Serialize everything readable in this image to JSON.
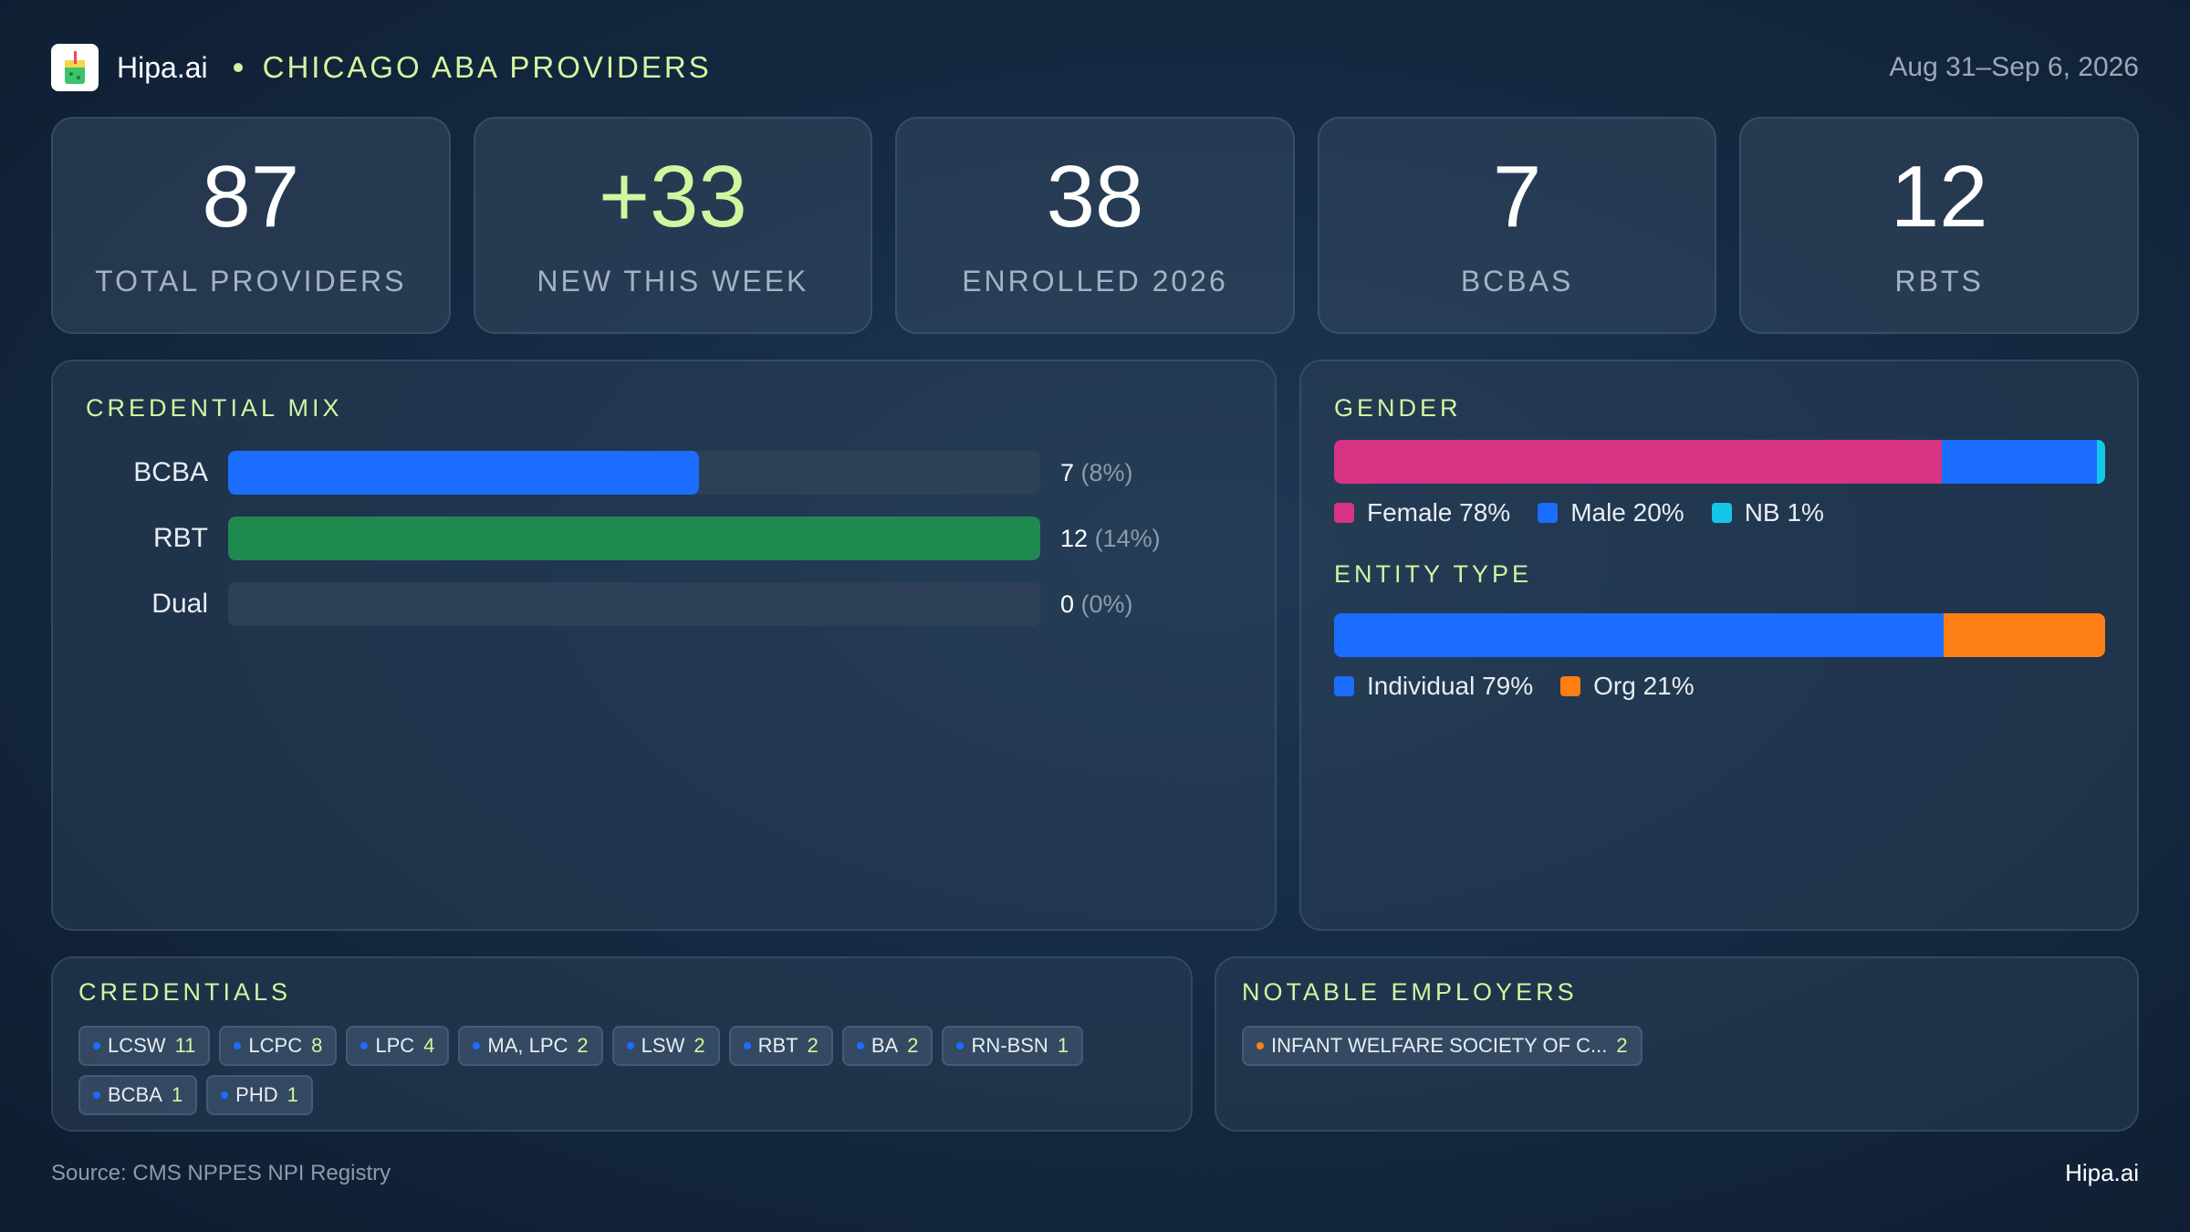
{
  "header": {
    "brand": "Hipa.ai",
    "title": "CHICAGO ABA PROVIDERS",
    "date_range": "Aug 31–Sep 6, 2026",
    "logo_icon": "drink-cup-icon"
  },
  "kpis": [
    {
      "value": "87",
      "label": "TOTAL PROVIDERS"
    },
    {
      "value": "+33",
      "label": "NEW THIS WEEK"
    },
    {
      "value": "38",
      "label": "ENROLLED 2026"
    },
    {
      "value": "7",
      "label": "BCBAS"
    },
    {
      "value": "12",
      "label": "RBTS"
    }
  ],
  "credential_mix": {
    "title": "CREDENTIAL MIX",
    "rows": [
      {
        "label": "BCBA",
        "value": "7",
        "pct": "(8%)",
        "fill": 0.58,
        "color": "#1a6dff"
      },
      {
        "label": "RBT",
        "value": "12",
        "pct": "(14%)",
        "fill": 1.0,
        "color": "#1e8a50"
      },
      {
        "label": "Dual",
        "value": "0",
        "pct": "(0%)",
        "fill": 0.0,
        "color": "#1a6dff"
      }
    ]
  },
  "gender": {
    "title": "GENDER",
    "segments": [
      {
        "label": "Female 78%",
        "share": 78,
        "color": "#d63384"
      },
      {
        "label": "Male 20%",
        "share": 20,
        "color": "#1a6dff"
      },
      {
        "label": "NB 1%",
        "share": 1,
        "color": "#15c5e8"
      }
    ]
  },
  "entity_type": {
    "title": "ENTITY TYPE",
    "segments": [
      {
        "label": "Individual 79%",
        "share": 79,
        "color": "#1a6dff"
      },
      {
        "label": "Org 21%",
        "share": 21,
        "color": "#fd7e14"
      }
    ]
  },
  "credentials": {
    "title": "CREDENTIALS",
    "chips": [
      {
        "label": "LCSW",
        "count": "11"
      },
      {
        "label": "LCPC",
        "count": "8"
      },
      {
        "label": "LPC",
        "count": "4"
      },
      {
        "label": "MA, LPC",
        "count": "2"
      },
      {
        "label": "LSW",
        "count": "2"
      },
      {
        "label": "RBT",
        "count": "2"
      },
      {
        "label": "BA",
        "count": "2"
      },
      {
        "label": "RN-BSN",
        "count": "1"
      },
      {
        "label": "BCBA",
        "count": "1"
      },
      {
        "label": "PHD",
        "count": "1"
      }
    ],
    "dot_color": "#1a6dff"
  },
  "employers": {
    "title": "NOTABLE EMPLOYERS",
    "chips": [
      {
        "label": "INFANT WELFARE SOCIETY OF C...",
        "count": "2"
      }
    ],
    "dot_color": "#fd7e14"
  },
  "footer": {
    "source": "Source: CMS NPPES NPI Registry",
    "brand": "Hipa.ai"
  }
}
